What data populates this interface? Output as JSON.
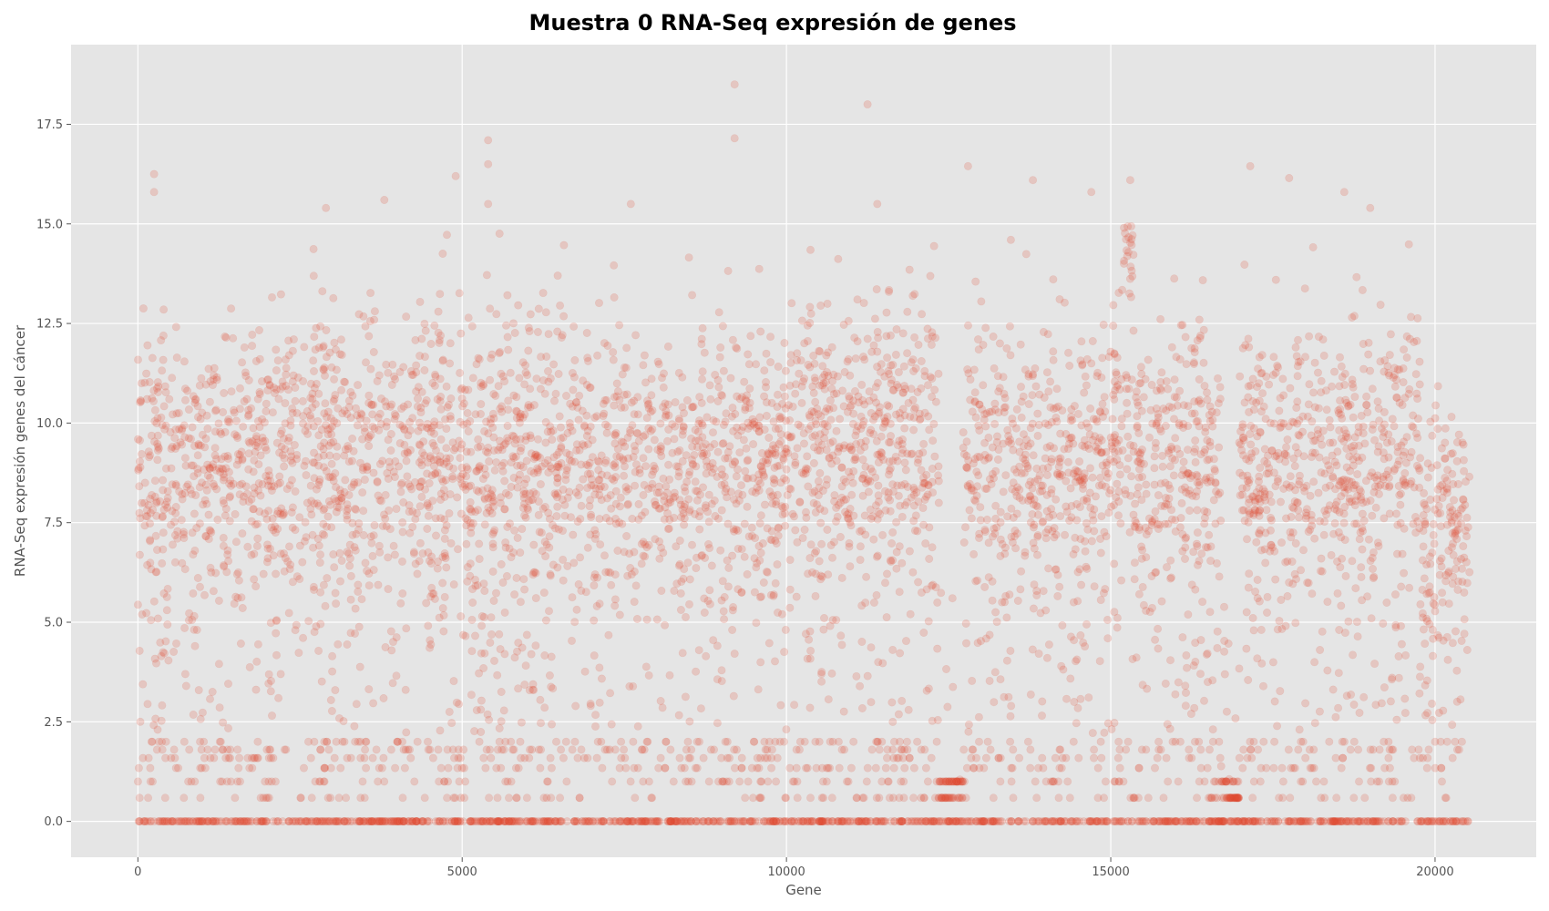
{
  "chart_data": {
    "type": "scatter",
    "title": "Muestra 0 RNA-Seq expresión de genes",
    "xlabel": "Gene",
    "ylabel": "RNA-Seq expresión genes del cáncer",
    "xlim": [
      -1030,
      21560
    ],
    "ylim": [
      -0.9,
      19.5
    ],
    "x_ticks": [
      0,
      5000,
      10000,
      15000,
      20000
    ],
    "x_tick_labels": [
      "0",
      "5000",
      "10000",
      "15000",
      "20000"
    ],
    "y_ticks": [
      0.0,
      2.5,
      5.0,
      7.5,
      10.0,
      12.5,
      15.0,
      17.5
    ],
    "y_tick_labels": [
      "0.0",
      "2.5",
      "5.0",
      "7.5",
      "10.0",
      "12.5",
      "15.0",
      "17.5"
    ],
    "grid": true,
    "point_color": "#E24A33",
    "point_alpha": 0.2,
    "background": "#E5E5E5",
    "n_points": 20531,
    "x_range": [
      0,
      20530
    ],
    "discrete_low_levels": [
      0.0,
      0.59,
      1.0,
      1.34,
      1.59,
      1.8,
      2.0
    ],
    "notable_points": [
      {
        "x": 9200,
        "y": 18.5
      },
      {
        "x": 11250,
        "y": 18.0
      },
      {
        "x": 9200,
        "y": 17.15
      },
      {
        "x": 5400,
        "y": 17.1
      },
      {
        "x": 5400,
        "y": 16.5
      },
      {
        "x": 12800,
        "y": 16.45
      },
      {
        "x": 17150,
        "y": 16.45
      },
      {
        "x": 250,
        "y": 16.25
      },
      {
        "x": 4900,
        "y": 16.2
      },
      {
        "x": 17750,
        "y": 16.15
      },
      {
        "x": 13800,
        "y": 16.1
      },
      {
        "x": 15300,
        "y": 16.1
      },
      {
        "x": 250,
        "y": 15.8
      },
      {
        "x": 14700,
        "y": 15.8
      },
      {
        "x": 18600,
        "y": 15.8
      },
      {
        "x": 3800,
        "y": 15.6
      },
      {
        "x": 5400,
        "y": 15.5
      },
      {
        "x": 11400,
        "y": 15.5
      },
      {
        "x": 7600,
        "y": 15.5
      },
      {
        "x": 2900,
        "y": 15.4
      },
      {
        "x": 19000,
        "y": 15.4
      }
    ]
  }
}
